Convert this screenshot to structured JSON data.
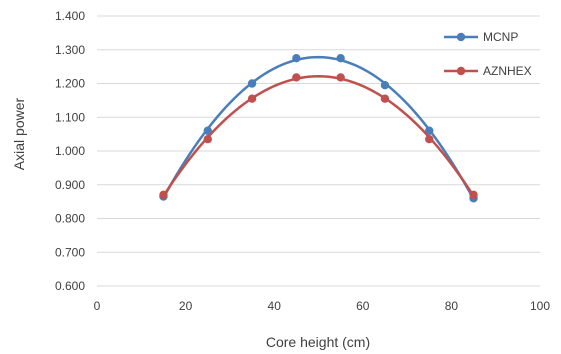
{
  "chart_data": {
    "type": "line",
    "xlabel": "Core height (cm)",
    "ylabel": "Axial power",
    "xlim": [
      0,
      100
    ],
    "ylim": [
      0.6,
      1.4
    ],
    "xticks": [
      "0",
      "20",
      "40",
      "60",
      "80",
      "100"
    ],
    "yticks": [
      "0.600",
      "0.700",
      "0.800",
      "0.900",
      "1.000",
      "1.100",
      "1.200",
      "1.300",
      "1.400"
    ],
    "grid": "horizontal",
    "legend_position": "top-right",
    "smooth": true,
    "series": [
      {
        "name": "MCNP",
        "color": "#4a7ebb",
        "x": [
          15,
          25,
          35,
          45,
          55,
          65,
          75,
          85
        ],
        "y": [
          0.865,
          1.06,
          1.2,
          1.275,
          1.275,
          1.195,
          1.06,
          0.86
        ]
      },
      {
        "name": "AZNHEX",
        "color": "#c0504d",
        "x": [
          15,
          25,
          35,
          45,
          55,
          65,
          75,
          85
        ],
        "y": [
          0.87,
          1.035,
          1.155,
          1.218,
          1.218,
          1.155,
          1.035,
          0.87
        ]
      }
    ]
  }
}
